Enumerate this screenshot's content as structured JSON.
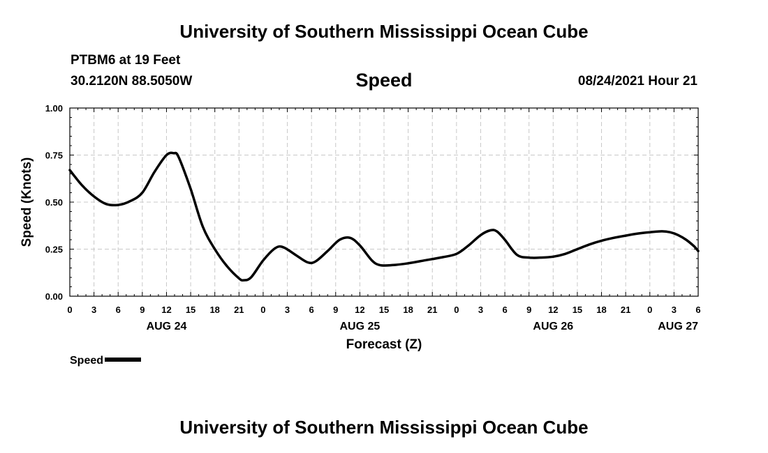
{
  "header": {
    "title": "University of Southern Mississippi Ocean Cube",
    "station": "PTBM6 at 19 Feet",
    "coords": "30.2120N  88.5050W",
    "chart_title": "Speed",
    "datetime": "08/24/2021 Hour 21"
  },
  "footer": {
    "title": "University of Southern Mississippi Ocean Cube"
  },
  "legend": {
    "label": "Speed"
  },
  "chart_data": {
    "type": "line",
    "title": "Speed",
    "xlabel": "Forecast (Z)",
    "ylabel": "Speed (Knots)",
    "xlim": [
      0,
      78
    ],
    "ylim": [
      0,
      1
    ],
    "grid": true,
    "legend_position": "bottom-left",
    "y_ticks": [
      "0.00",
      "0.25",
      "0.50",
      "0.75",
      "1.00"
    ],
    "x_tick_labels": [
      "0",
      "3",
      "6",
      "9",
      "12",
      "15",
      "18",
      "21",
      "0",
      "3",
      "6",
      "9",
      "12",
      "15",
      "18",
      "21",
      "0",
      "3",
      "6",
      "9",
      "12",
      "15",
      "18",
      "21",
      "0",
      "3",
      "6"
    ],
    "date_labels": [
      {
        "label": "AUG 24",
        "hour": 12
      },
      {
        "label": "AUG 25",
        "hour": 36
      },
      {
        "label": "AUG 26",
        "hour": 60
      },
      {
        "label": "AUG 27",
        "hour": 78
      }
    ],
    "series": [
      {
        "name": "Speed",
        "color": "#000000",
        "points": [
          [
            0,
            0.67
          ],
          [
            1.5,
            0.59
          ],
          [
            3,
            0.53
          ],
          [
            4.5,
            0.49
          ],
          [
            6,
            0.485
          ],
          [
            7.5,
            0.505
          ],
          [
            9,
            0.55
          ],
          [
            10.5,
            0.66
          ],
          [
            12,
            0.75
          ],
          [
            12.9,
            0.76
          ],
          [
            13.5,
            0.74
          ],
          [
            15,
            0.57
          ],
          [
            16.5,
            0.37
          ],
          [
            18,
            0.25
          ],
          [
            19.5,
            0.16
          ],
          [
            21,
            0.095
          ],
          [
            21.6,
            0.085
          ],
          [
            22.5,
            0.1
          ],
          [
            24,
            0.19
          ],
          [
            25.5,
            0.255
          ],
          [
            26.5,
            0.26
          ],
          [
            28,
            0.22
          ],
          [
            29.5,
            0.18
          ],
          [
            30.5,
            0.185
          ],
          [
            32,
            0.24
          ],
          [
            33.5,
            0.3
          ],
          [
            34.8,
            0.31
          ],
          [
            36,
            0.27
          ],
          [
            37.5,
            0.19
          ],
          [
            38.5,
            0.165
          ],
          [
            40,
            0.165
          ],
          [
            42,
            0.175
          ],
          [
            44,
            0.19
          ],
          [
            46,
            0.205
          ],
          [
            48,
            0.225
          ],
          [
            49.5,
            0.27
          ],
          [
            51,
            0.325
          ],
          [
            52.2,
            0.35
          ],
          [
            53,
            0.345
          ],
          [
            54,
            0.3
          ],
          [
            55.5,
            0.22
          ],
          [
            57,
            0.205
          ],
          [
            58.5,
            0.205
          ],
          [
            60,
            0.21
          ],
          [
            61.5,
            0.225
          ],
          [
            63,
            0.25
          ],
          [
            64.5,
            0.275
          ],
          [
            66,
            0.295
          ],
          [
            67.5,
            0.31
          ],
          [
            69,
            0.322
          ],
          [
            70.5,
            0.333
          ],
          [
            72,
            0.34
          ],
          [
            73.5,
            0.345
          ],
          [
            74.5,
            0.34
          ],
          [
            75.5,
            0.325
          ],
          [
            76.5,
            0.3
          ],
          [
            77.5,
            0.265
          ],
          [
            78,
            0.24
          ]
        ]
      }
    ]
  }
}
